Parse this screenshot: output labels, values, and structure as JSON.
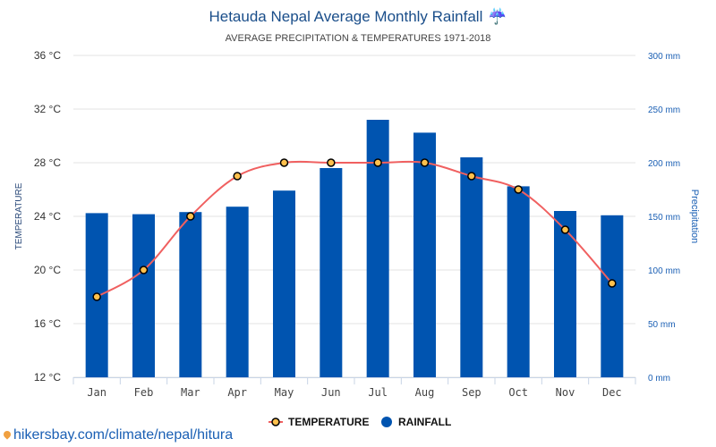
{
  "chart_data": {
    "type": "bar",
    "title": "Hetauda Nepal Average Monthly Rainfall",
    "title_icon": "umbrella-rain-icon",
    "subtitle": "AVERAGE PRECIPITATION & TEMPERATURES 1971-2018",
    "categories": [
      "Jan",
      "Feb",
      "Mar",
      "Apr",
      "May",
      "Jun",
      "Jul",
      "Aug",
      "Sep",
      "Oct",
      "Nov",
      "Dec"
    ],
    "series": [
      {
        "name": "RAINFALL",
        "type": "bar",
        "axis": "right",
        "unit": "mm",
        "color": "#0054b0",
        "values": [
          153,
          152,
          154,
          159,
          174,
          195,
          240,
          228,
          205,
          178,
          155,
          151
        ]
      },
      {
        "name": "TEMPERATURE",
        "type": "line",
        "axis": "left",
        "unit": "°C",
        "color": "#f06060",
        "marker_color": "#ffc04d",
        "values": [
          18,
          20,
          24,
          27,
          28,
          28,
          28,
          28,
          27,
          26,
          23,
          19
        ]
      }
    ],
    "y_left": {
      "label": "TEMPERATURE",
      "range": [
        12,
        36
      ],
      "ticks": [
        "12 °C",
        "16 °C",
        "20 °C",
        "24 °C",
        "28 °C",
        "32 °C",
        "36 °C"
      ],
      "tick_values": [
        12,
        16,
        20,
        24,
        28,
        32,
        36
      ]
    },
    "y_right": {
      "label": "Precipitation",
      "range": [
        0,
        300
      ],
      "ticks": [
        "0 mm",
        "50 mm",
        "100 mm",
        "150 mm",
        "200 mm",
        "250 mm",
        "300 mm"
      ],
      "tick_values": [
        0,
        50,
        100,
        150,
        200,
        250,
        300
      ]
    },
    "grid": true,
    "legend": {
      "placement": "bottom",
      "items": [
        "TEMPERATURE",
        "RAINFALL"
      ]
    }
  },
  "source_link": "hikersbay.com/climate/nepal/hitura"
}
